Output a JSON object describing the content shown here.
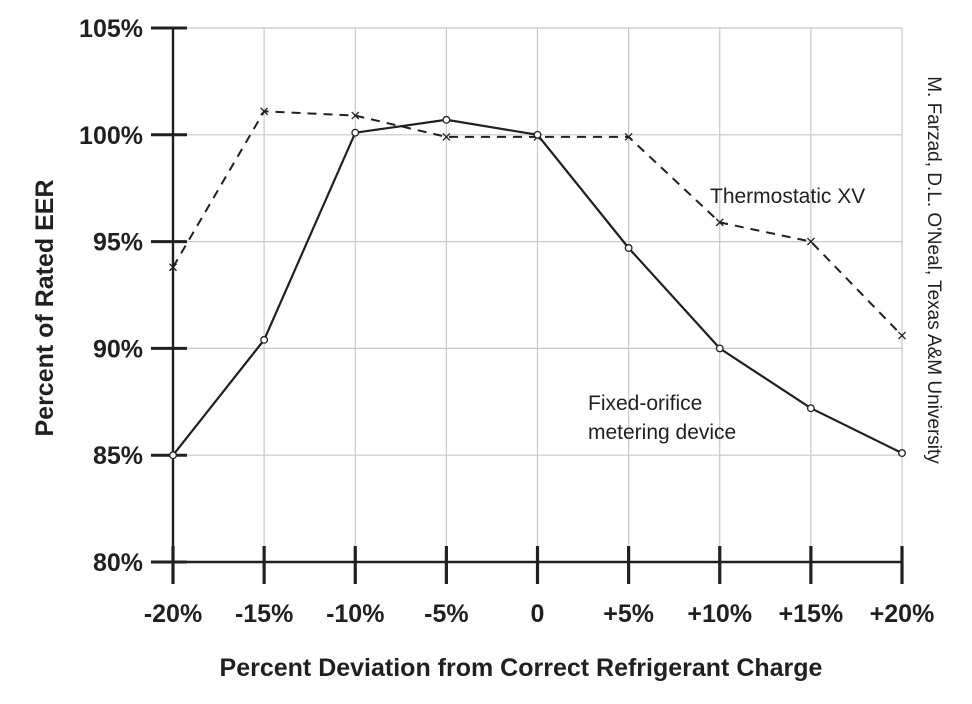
{
  "chart_data": {
    "type": "line",
    "title": "",
    "xlabel": "Percent Deviation from Correct Refrigerant Charge",
    "ylabel": "Percent of Rated EER",
    "categories": [
      "-20%",
      "-15%",
      "-10%",
      "-5%",
      "0",
      "+5%",
      "+10%",
      "+15%",
      "+20%"
    ],
    "x": [
      -20,
      -15,
      -10,
      -5,
      0,
      5,
      10,
      15,
      20
    ],
    "y_ticks": [
      "80%",
      "85%",
      "90%",
      "95%",
      "100%",
      "105%"
    ],
    "y_tick_values": [
      80,
      85,
      90,
      95,
      100,
      105
    ],
    "ylim": [
      80,
      105
    ],
    "xlim": [
      -20,
      20
    ],
    "grid": true,
    "series": [
      {
        "name": "Thermostatic XV",
        "style": "dashed",
        "marker": "x",
        "values": [
          93.8,
          101.1,
          100.9,
          99.9,
          99.9,
          99.9,
          95.9,
          95.0,
          90.6
        ]
      },
      {
        "name": "Fixed-orifice metering device",
        "style": "solid",
        "marker": "circle",
        "values": [
          85.0,
          90.4,
          100.1,
          100.7,
          100.0,
          94.7,
          90.0,
          87.2,
          85.1
        ]
      }
    ],
    "annotations": [
      {
        "lines": [
          "Thermostatic XV"
        ]
      },
      {
        "lines": [
          "Fixed-orifice",
          "metering device"
        ]
      }
    ],
    "credit": "M. Farzad, D.L. O'Neal, Texas A&M University",
    "colors": {
      "line": "#231f20",
      "grid": "#c8c8c8",
      "background": "#ffffff"
    }
  }
}
